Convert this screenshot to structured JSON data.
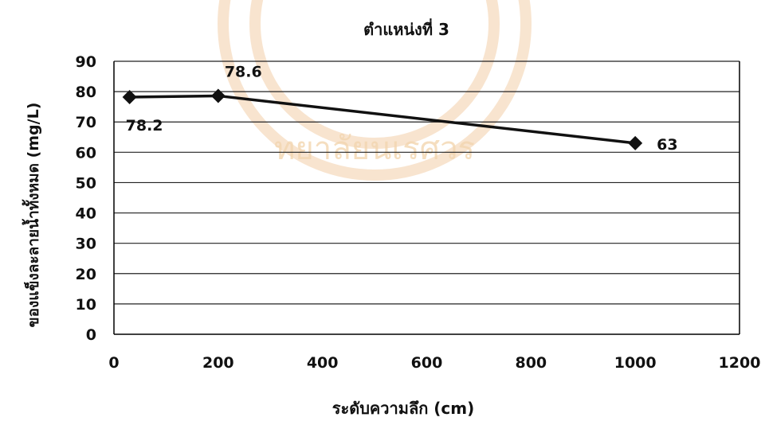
{
  "chart_data": {
    "type": "line",
    "title": "ตำแหน่งที่ 3",
    "xlabel": "ระดับความลึก (cm)",
    "ylabel": "ของแข็งละลายน้ำทั้งหมด (mg/L)",
    "xlim": [
      0,
      1200
    ],
    "ylim": [
      0,
      90
    ],
    "xticks": [
      0,
      200,
      400,
      600,
      800,
      1000,
      1200
    ],
    "yticks": [
      0,
      10,
      20,
      30,
      40,
      50,
      60,
      70,
      80,
      90
    ],
    "grid": "horizontal",
    "marker": "diamond",
    "series": [
      {
        "x": [
          30,
          200,
          1000
        ],
        "values": [
          78.2,
          78.6,
          63
        ],
        "labels": [
          "78.2",
          "78.6",
          "63"
        ]
      }
    ]
  },
  "colors": {
    "line": "#111111",
    "grid": "#222222",
    "watermark": "#f3d6b0"
  },
  "watermark": {
    "text": "ทยาลัยนเรศวร"
  }
}
